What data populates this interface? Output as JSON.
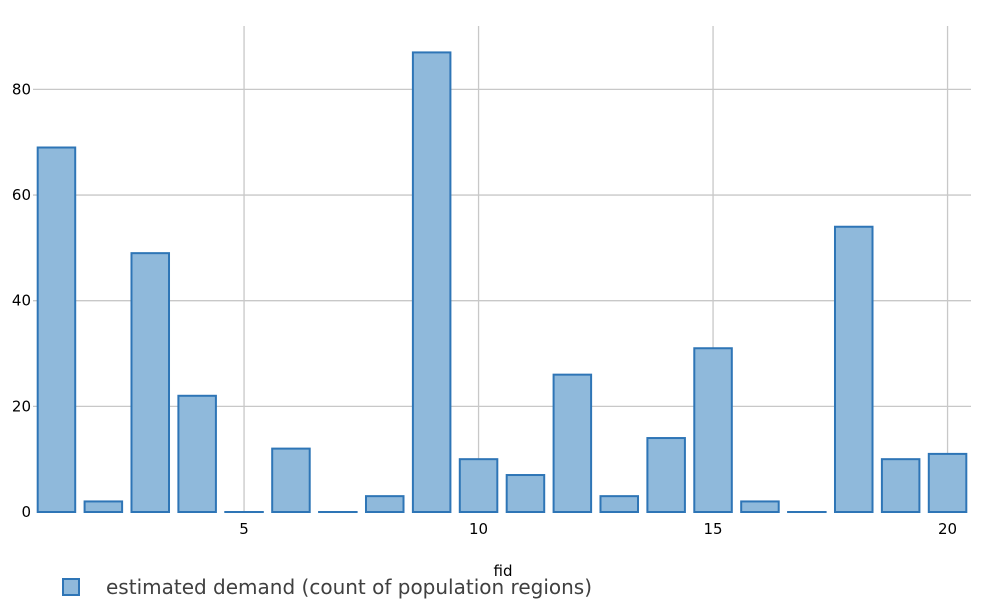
{
  "chart_data": {
    "type": "bar",
    "xlabel": "fid",
    "ylabel": "",
    "title": "",
    "x": [
      1,
      2,
      3,
      4,
      5,
      6,
      7,
      8,
      9,
      10,
      11,
      12,
      13,
      14,
      15,
      16,
      17,
      18,
      19,
      20
    ],
    "series": [
      {
        "name": "estimated demand (count of population regions)",
        "values": [
          69,
          2,
          49,
          22,
          0,
          12,
          0,
          3,
          87,
          10,
          7,
          26,
          3,
          14,
          31,
          2,
          0,
          54,
          10,
          11
        ]
      }
    ],
    "xlim": [
      0.5,
      20.5
    ],
    "ylim": [
      0,
      92
    ],
    "xticks": [
      5,
      10,
      15,
      20
    ],
    "yticks": [
      0,
      20,
      40,
      60,
      80
    ],
    "grid": true,
    "legend_position": "bottom-left",
    "colors": {
      "bar_fill": "#8fb9db",
      "bar_stroke": "#2e75b6",
      "grid": "#c8c8c8"
    }
  }
}
